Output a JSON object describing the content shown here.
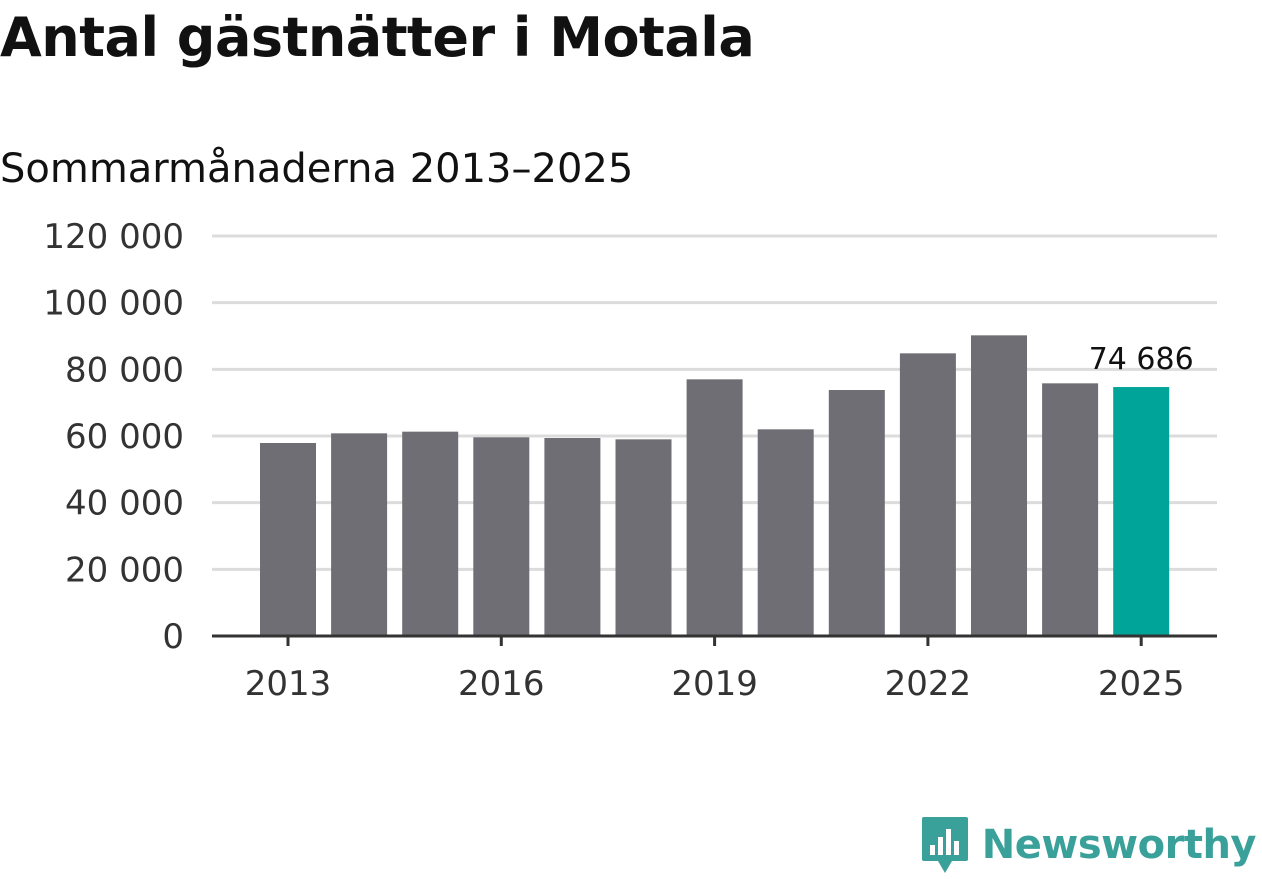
{
  "chart_data": {
    "type": "bar",
    "title": "Antal gästnätter i Motala",
    "subtitle": "Sommarmånaderna 2013–2025",
    "categories": [
      "2013",
      "2014",
      "2015",
      "2016",
      "2017",
      "2018",
      "2019",
      "2020",
      "2021",
      "2022",
      "2023",
      "2024",
      "2025"
    ],
    "values": [
      57900,
      60800,
      61300,
      59600,
      59400,
      59000,
      77000,
      62000,
      73800,
      84800,
      90200,
      75800,
      74686
    ],
    "ylim": [
      0,
      120000
    ],
    "yticks": [
      0,
      20000,
      40000,
      60000,
      80000,
      100000,
      120000
    ],
    "ytick_labels": [
      "0",
      "20 000",
      "40 000",
      "60 000",
      "80 000",
      "100 000",
      "120 000"
    ],
    "xtick_labels": [
      "2013",
      "2016",
      "2019",
      "2022",
      "2025"
    ],
    "highlight_index": 12,
    "highlight_label": "74 686",
    "colors": {
      "bar": "#6f6e75",
      "highlight": "#00a499",
      "grid": "#dcdcdc",
      "axis": "#333333"
    },
    "grid": true
  },
  "brand": {
    "name": "Newsworthy",
    "color": "#3aa09a",
    "logo_icon": "bar-chart-speech-bubble-icon"
  }
}
